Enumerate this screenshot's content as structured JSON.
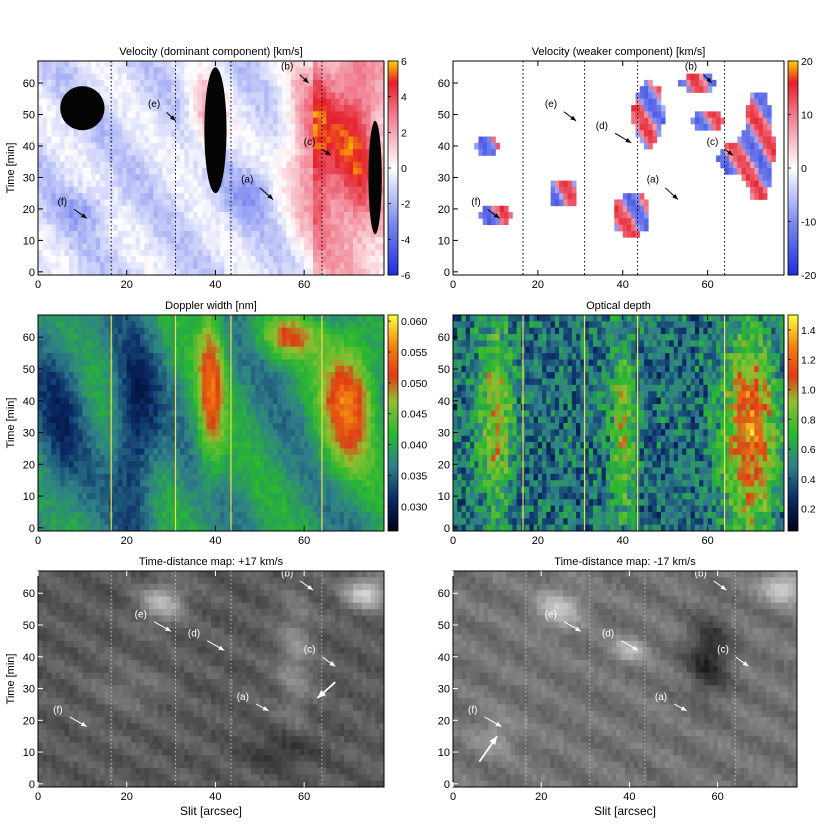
{
  "chart_data": [
    {
      "type": "heatmap",
      "title": "Velocity (dominant component) [km/s]",
      "xlabel": "",
      "ylabel": "Time [min]",
      "xlim": [
        0,
        78
      ],
      "ylim": [
        -1,
        67
      ],
      "xticks": [
        0,
        20,
        40,
        60
      ],
      "yticks": [
        0,
        10,
        20,
        30,
        40,
        50,
        60
      ],
      "colorbar": {
        "min": -6,
        "max": 6,
        "ticks": [
          6,
          4,
          2,
          0,
          -2,
          -4,
          -6
        ],
        "colormap": "blue-white-red"
      },
      "dotted_lines_x": [
        16.5,
        31,
        43.5,
        64
      ],
      "annotations": [
        {
          "label": "(a)",
          "x": 49,
          "y": 28,
          "tip_x": 53,
          "tip_y": 23
        },
        {
          "label": "(b)",
          "x": 58,
          "y": 64,
          "tip_x": 61,
          "tip_y": 60
        },
        {
          "label": "(c)",
          "x": 63,
          "y": 40,
          "tip_x": 66,
          "tip_y": 37
        },
        {
          "label": "(e)",
          "x": 28,
          "y": 52,
          "tip_x": 31,
          "tip_y": 48
        },
        {
          "label": "(f)",
          "x": 7,
          "y": 21,
          "tip_x": 11,
          "tip_y": 17
        }
      ]
    },
    {
      "type": "heatmap",
      "title": "Velocity (weaker component) [km/s]",
      "xlabel": "",
      "ylabel": "",
      "xlim": [
        0,
        78
      ],
      "ylim": [
        -1,
        67
      ],
      "xticks": [
        0,
        20,
        40,
        60
      ],
      "yticks": [
        0,
        10,
        20,
        30,
        40,
        50,
        60
      ],
      "colorbar": {
        "min": -20,
        "max": 20,
        "ticks": [
          20,
          10,
          0,
          -10,
          -20
        ],
        "colormap": "blue-white-red"
      },
      "dotted_lines_x": [
        16.5,
        31,
        43.5,
        64
      ],
      "annotations": [
        {
          "label": "(a)",
          "x": 49,
          "y": 28,
          "tip_x": 53,
          "tip_y": 23
        },
        {
          "label": "(b)",
          "x": 58,
          "y": 64,
          "tip_x": 61,
          "tip_y": 60
        },
        {
          "label": "(c)",
          "x": 63,
          "y": 40,
          "tip_x": 66,
          "tip_y": 37
        },
        {
          "label": "(d)",
          "x": 37,
          "y": 45,
          "tip_x": 42,
          "tip_y": 41
        },
        {
          "label": "(e)",
          "x": 25,
          "y": 52,
          "tip_x": 29,
          "tip_y": 48
        },
        {
          "label": "(f)",
          "x": 7,
          "y": 21,
          "tip_x": 11,
          "tip_y": 17
        }
      ]
    },
    {
      "type": "heatmap",
      "title": "Doppler width [nm]",
      "xlabel": "",
      "ylabel": "Time [min]",
      "xlim": [
        0,
        78
      ],
      "ylim": [
        -1,
        67
      ],
      "xticks": [
        0,
        20,
        40,
        60
      ],
      "yticks": [
        0,
        10,
        20,
        30,
        40,
        50,
        60
      ],
      "colorbar": {
        "min": 0.026,
        "max": 0.061,
        "ticks": [
          0.06,
          0.055,
          0.05,
          0.045,
          0.04,
          0.035,
          0.03
        ],
        "tick_labels": [
          "0.060",
          "0.055",
          "0.050",
          "0.045",
          "0.040",
          "0.035",
          "0.030"
        ],
        "colormap": "navy-green-red-yellow"
      },
      "solid_lines_x": [
        16.5,
        31,
        43.5,
        64
      ],
      "annotations": []
    },
    {
      "type": "heatmap",
      "title": "Optical depth",
      "xlabel": "",
      "ylabel": "",
      "xlim": [
        0,
        78
      ],
      "ylim": [
        -1,
        67
      ],
      "xticks": [
        0,
        20,
        40,
        60
      ],
      "yticks": [
        0,
        10,
        20,
        30,
        40,
        50,
        60
      ],
      "colorbar": {
        "min": 0.05,
        "max": 1.5,
        "ticks": [
          1.4,
          1.2,
          1.0,
          0.8,
          0.6,
          0.4,
          0.2
        ],
        "tick_labels": [
          "1.4",
          "1.2",
          "1.0",
          "0.8",
          "0.6",
          "0.4",
          "0.2"
        ],
        "colormap": "navy-green-red-yellow"
      },
      "solid_lines_x": [
        16.5,
        31,
        43.5,
        64
      ],
      "annotations": []
    },
    {
      "type": "heatmap",
      "title": "Time-distance map: +17 km/s",
      "xlabel": "Slit [arcsec]",
      "ylabel": "Time [min]",
      "xlim": [
        0,
        78
      ],
      "ylim": [
        -1,
        67
      ],
      "xticks": [
        0,
        20,
        40,
        60
      ],
      "yticks": [
        0,
        10,
        20,
        30,
        40,
        50,
        60
      ],
      "colormap": "grayscale",
      "dotted_lines_x": [
        16.5,
        31,
        43.5,
        64
      ],
      "annotations": [
        {
          "label": "(a)",
          "x": 48,
          "y": 26,
          "tip_x": 52,
          "tip_y": 23
        },
        {
          "label": "(b)",
          "x": 58,
          "y": 65,
          "tip_x": 62,
          "tip_y": 61
        },
        {
          "label": "(c)",
          "x": 63,
          "y": 41,
          "tip_x": 67,
          "tip_y": 37
        },
        {
          "label": "(d)",
          "x": 37,
          "y": 46,
          "tip_x": 42,
          "tip_y": 42
        },
        {
          "label": "(e)",
          "x": 25,
          "y": 52,
          "tip_x": 30,
          "tip_y": 48
        },
        {
          "label": "(f)",
          "x": 6,
          "y": 22,
          "tip_x": 11,
          "tip_y": 18
        },
        {
          "label": "",
          "x": 67,
          "y": 32,
          "tip_x": 63,
          "tip_y": 27,
          "thick": true
        }
      ]
    },
    {
      "type": "heatmap",
      "title": "Time-distance map: -17 km/s",
      "xlabel": "Slit [arcsec]",
      "ylabel": "",
      "xlim": [
        0,
        78
      ],
      "ylim": [
        -1,
        67
      ],
      "xticks": [
        0,
        20,
        40,
        60
      ],
      "yticks": [
        0,
        10,
        20,
        30,
        40,
        50,
        60
      ],
      "colormap": "grayscale",
      "dotted_lines_x": [
        16.5,
        31,
        43.5,
        64
      ],
      "annotations": [
        {
          "label": "(a)",
          "x": 49,
          "y": 26,
          "tip_x": 53,
          "tip_y": 23
        },
        {
          "label": "(b)",
          "x": 58,
          "y": 65,
          "tip_x": 62,
          "tip_y": 61
        },
        {
          "label": "(c)",
          "x": 63,
          "y": 41,
          "tip_x": 67,
          "tip_y": 37
        },
        {
          "label": "(d)",
          "x": 37,
          "y": 46,
          "tip_x": 42,
          "tip_y": 42
        },
        {
          "label": "(e)",
          "x": 24,
          "y": 52,
          "tip_x": 29,
          "tip_y": 48
        },
        {
          "label": "(f)",
          "x": 6,
          "y": 22,
          "tip_x": 11,
          "tip_y": 18
        },
        {
          "label": "",
          "x": 6,
          "y": 7,
          "tip_x": 10,
          "tip_y": 15,
          "thick": true
        }
      ]
    }
  ]
}
